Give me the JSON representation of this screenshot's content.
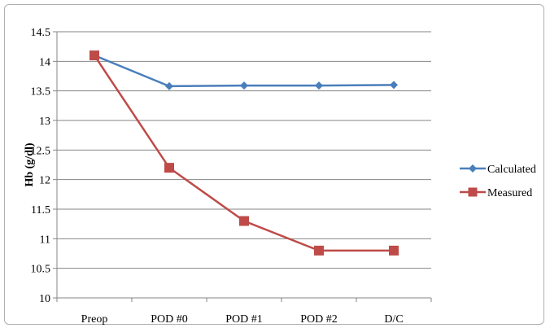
{
  "chart_data": {
    "type": "line",
    "title": "",
    "xlabel": "",
    "ylabel": "Hb (g/dl)",
    "categories": [
      "Preop",
      "POD #0",
      "POD #1",
      "POD #2",
      "D/C"
    ],
    "ylim": [
      10,
      14.5
    ],
    "yticks": [
      "10",
      "10.5",
      "11",
      "11.5",
      "12",
      "12.5",
      "13",
      "13.5",
      "14",
      "14.5"
    ],
    "grid": true,
    "legend_position": "right",
    "series": [
      {
        "name": "Calculated",
        "values": [
          14.1,
          13.58,
          13.59,
          13.59,
          13.6
        ],
        "color": "#4a7ebb",
        "marker": "diamond"
      },
      {
        "name": "Measured",
        "values": [
          14.1,
          12.2,
          11.3,
          10.8,
          10.8
        ],
        "color": "#be4b48",
        "marker": "square"
      }
    ]
  }
}
